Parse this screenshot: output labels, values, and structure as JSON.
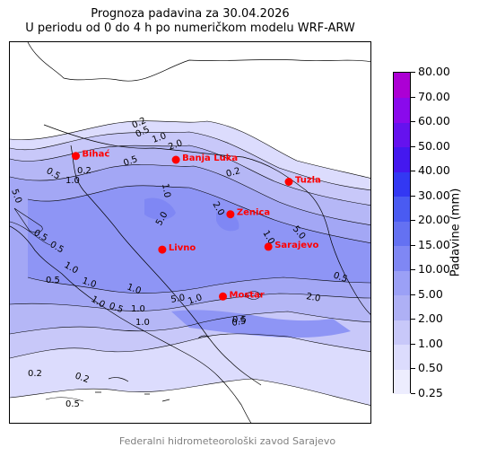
{
  "title": {
    "line1": "Prognoza padavina za 30.04.2026",
    "line2": "U periodu od 0 do 4 h po numeričkom modelu WRF-ARW"
  },
  "colorbar": {
    "label": "Padavine (mm)",
    "levels": [
      "0.25",
      "0.50",
      "1.00",
      "2.00",
      "5.00",
      "10.00",
      "15.00",
      "20.00",
      "30.00",
      "40.00",
      "50.00",
      "60.00",
      "70.00",
      "80.00"
    ],
    "colors": [
      "#ededfe",
      "#dcdcfd",
      "#c8c8f9",
      "#aeb0f5",
      "#9ba0f6",
      "#7f87f4",
      "#6471f2",
      "#4a5bf2",
      "#3338f3",
      "#4418ef",
      "#6512ee",
      "#8a0aec",
      "#ac00d4"
    ]
  },
  "cities": [
    {
      "name": "Bihać",
      "lon": 15.87,
      "lat": 44.81
    },
    {
      "name": "Banja Luka",
      "lon": 17.19,
      "lat": 44.77
    },
    {
      "name": "Tuzla",
      "lon": 18.68,
      "lat": 44.54
    },
    {
      "name": "Zenica",
      "lon": 17.91,
      "lat": 44.2
    },
    {
      "name": "Sarajevo",
      "lon": 18.41,
      "lat": 43.86
    },
    {
      "name": "Livno",
      "lon": 17.01,
      "lat": 43.83
    },
    {
      "name": "Mostar",
      "lon": 17.81,
      "lat": 43.34
    }
  ],
  "contour_labels": [
    "0.2",
    "0.5",
    "1.0",
    "2.0",
    "5.0",
    "0.5",
    "0.2",
    "1.0",
    "0.5",
    "1.0",
    "2.0",
    "5.0",
    "5.0",
    "1.0",
    "0.2",
    "0.5",
    "0.5",
    "1.0",
    "1.0",
    "5.0",
    "2.0",
    "0.5",
    "0.5",
    "0.5",
    "1.0",
    "1.0",
    "0.2",
    "0.2",
    "0.5",
    "0.5",
    "1.0",
    "1.0",
    "1.0",
    "0.5"
  ],
  "footer": "Federalni hidrometeorološki zavod Sarajevo",
  "colors": {
    "city_marker": "#ff0000",
    "border": "#000000"
  }
}
